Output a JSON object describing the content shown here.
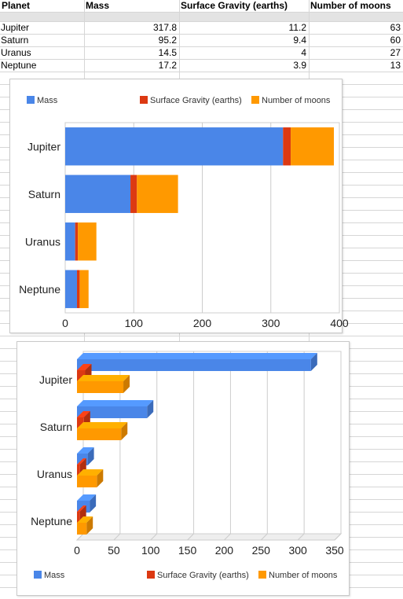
{
  "table": {
    "headers": [
      "Planet",
      "Mass",
      "Surface Gravity (earths)",
      "Number of moons"
    ],
    "rows": [
      [
        "Jupiter",
        "317.8",
        "11.2",
        "63"
      ],
      [
        "Saturn",
        "95.2",
        "9.4",
        "60"
      ],
      [
        "Uranus",
        "14.5",
        "4",
        "27"
      ],
      [
        "Neptune",
        "17.2",
        "3.9",
        "13"
      ]
    ]
  },
  "colors": {
    "mass": "#4a86e8",
    "gravity": "#dc3912",
    "moons": "#ff9900",
    "grid": "#cccccc"
  },
  "chart_data": [
    {
      "type": "bar",
      "orientation": "horizontal",
      "stacked": true,
      "categories": [
        "Jupiter",
        "Saturn",
        "Uranus",
        "Neptune"
      ],
      "series": [
        {
          "name": "Mass",
          "values": [
            317.8,
            95.2,
            14.5,
            17.2
          ]
        },
        {
          "name": "Surface Gravity (earths)",
          "values": [
            11.2,
            9.4,
            4,
            3.9
          ]
        },
        {
          "name": "Number of moons",
          "values": [
            63,
            60,
            27,
            13
          ]
        }
      ],
      "xlim": [
        0,
        400
      ],
      "xticks": [
        "0",
        "100",
        "200",
        "300",
        "400"
      ],
      "legend": "top",
      "grid": true
    },
    {
      "type": "bar",
      "orientation": "horizontal",
      "stacked": false,
      "style": "3d",
      "categories": [
        "Jupiter",
        "Saturn",
        "Uranus",
        "Neptune"
      ],
      "series": [
        {
          "name": "Mass",
          "values": [
            317.8,
            95.2,
            14.5,
            17.2
          ]
        },
        {
          "name": "Surface Gravity (earths)",
          "values": [
            11.2,
            9.4,
            4,
            3.9
          ]
        },
        {
          "name": "Number of moons",
          "values": [
            63,
            60,
            27,
            13
          ]
        }
      ],
      "xlim": [
        0,
        350
      ],
      "xticks": [
        "0",
        "50",
        "100",
        "150",
        "200",
        "250",
        "300",
        "350"
      ],
      "legend": "bottom",
      "grid": true
    }
  ]
}
